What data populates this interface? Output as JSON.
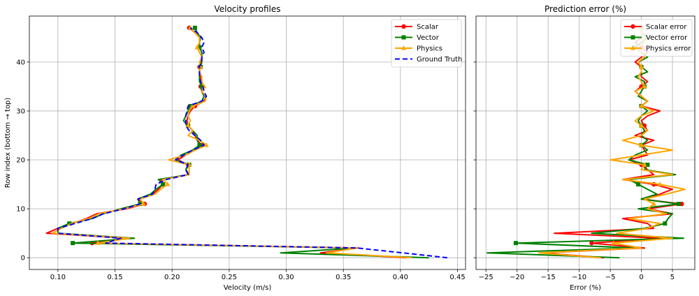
{
  "chart_data": [
    {
      "type": "line",
      "title": "Velocity profiles",
      "xlabel": "Velocity (m/s)",
      "ylabel": "Row index (bottom → top)",
      "xlim": [
        0.075,
        0.457
      ],
      "ylim": [
        -2.4,
        49.4
      ],
      "xticks": [
        0.1,
        0.15,
        0.2,
        0.25,
        0.3,
        0.35,
        0.4,
        0.45
      ],
      "xtick_labels": [
        "0.10",
        "0.15",
        "0.20",
        "0.25",
        "0.30",
        "0.35",
        "0.40",
        "0.45"
      ],
      "yticks": [
        0,
        10,
        20,
        30,
        40
      ],
      "ytick_labels": [
        "0",
        "10",
        "20",
        "30",
        "40"
      ],
      "grid": true,
      "legend_position": "top-right",
      "series": [
        {
          "name": "Scalar",
          "color": "#ff0000",
          "marker": "circle",
          "linestyle": "solid",
          "y": [
            0,
            1,
            2,
            3,
            4,
            5,
            6,
            7,
            8,
            9,
            10,
            11,
            12,
            13,
            14,
            15,
            16,
            17,
            18,
            19,
            20,
            21,
            22,
            23,
            24,
            25,
            26,
            27,
            28,
            29,
            30,
            31,
            32,
            33,
            34,
            35,
            36,
            37,
            38,
            39,
            40,
            41,
            42,
            43,
            44,
            45,
            46,
            47
          ],
          "x": [
            0.405,
            0.33,
            0.363,
            0.13,
            0.16,
            0.09,
            0.1,
            0.113,
            0.125,
            0.134,
            0.16,
            0.176,
            0.17,
            0.183,
            0.188,
            0.192,
            0.19,
            0.214,
            0.212,
            0.214,
            0.205,
            0.212,
            0.22,
            0.226,
            0.222,
            0.22,
            0.218,
            0.214,
            0.213,
            0.214,
            0.216,
            0.22,
            0.228,
            0.23,
            0.226,
            0.225,
            0.226,
            0.225,
            0.224,
            0.224,
            0.225,
            0.226,
            0.226,
            0.224,
            0.224,
            0.224,
            0.22,
            0.215
          ],
          "marker_rows": [
            3,
            11,
            15,
            19,
            23,
            27,
            31,
            35,
            39,
            43,
            47
          ]
        },
        {
          "name": "Vector",
          "color": "#008000",
          "marker": "square",
          "linestyle": "solid",
          "y": [
            0,
            1,
            2,
            3,
            4,
            5,
            6,
            7,
            8,
            9,
            10,
            11,
            12,
            13,
            14,
            15,
            16,
            17,
            18,
            19,
            20,
            21,
            22,
            23,
            24,
            25,
            26,
            27,
            28,
            29,
            30,
            31,
            32,
            33,
            34,
            35,
            36,
            37,
            38,
            39,
            40,
            41,
            42,
            43,
            44,
            45,
            46,
            47
          ],
          "x": [
            0.425,
            0.295,
            0.36,
            0.113,
            0.167,
            0.1,
            0.1,
            0.11,
            0.13,
            0.14,
            0.155,
            0.172,
            0.17,
            0.181,
            0.186,
            0.192,
            0.188,
            0.215,
            0.212,
            0.215,
            0.203,
            0.208,
            0.218,
            0.224,
            0.222,
            0.222,
            0.218,
            0.214,
            0.21,
            0.212,
            0.214,
            0.216,
            0.226,
            0.228,
            0.226,
            0.226,
            0.224,
            0.224,
            0.224,
            0.225,
            0.226,
            0.226,
            0.226,
            0.224,
            0.224,
            0.225,
            0.222,
            0.22
          ],
          "marker_rows": [
            3,
            7,
            11,
            15,
            19,
            23,
            27,
            31,
            35,
            39,
            43,
            47
          ]
        },
        {
          "name": "Physics",
          "color": "#ffa500",
          "marker": "triangle",
          "linestyle": "solid",
          "y": [
            0,
            1,
            2,
            3,
            4,
            5,
            6,
            7,
            8,
            9,
            10,
            11,
            12,
            13,
            14,
            15,
            16,
            17,
            18,
            19,
            20,
            21,
            22,
            23,
            24,
            25,
            26,
            27,
            28,
            29,
            30,
            31,
            32,
            33,
            34,
            35,
            36,
            37,
            38,
            39,
            40,
            41,
            42,
            43,
            44,
            45,
            46,
            47
          ],
          "x": [
            0.41,
            0.335,
            0.362,
            0.135,
            0.163,
            0.095,
            0.103,
            0.112,
            0.127,
            0.136,
            0.158,
            0.175,
            0.172,
            0.185,
            0.19,
            0.196,
            0.192,
            0.215,
            0.215,
            0.215,
            0.197,
            0.212,
            0.22,
            0.23,
            0.224,
            0.214,
            0.218,
            0.214,
            0.216,
            0.214,
            0.215,
            0.218,
            0.229,
            0.23,
            0.226,
            0.228,
            0.226,
            0.226,
            0.224,
            0.225,
            0.224,
            0.226,
            0.224,
            0.222,
            0.224,
            0.224,
            0.22,
            0.216
          ],
          "marker_rows": [
            3,
            11,
            15,
            19,
            23,
            27,
            31,
            35,
            39,
            43,
            47
          ]
        },
        {
          "name": "Ground Truth",
          "color": "#0000ff",
          "marker": "none",
          "linestyle": "dashed",
          "y": [
            0,
            1,
            2,
            3,
            4,
            5,
            6,
            7,
            8,
            9,
            10,
            11,
            12,
            13,
            14,
            15,
            16,
            17,
            18,
            19,
            20,
            21,
            22,
            23,
            24,
            25,
            26,
            27,
            28,
            29,
            30,
            31,
            32,
            33,
            34,
            35,
            36,
            37,
            38,
            39,
            40,
            41,
            42,
            43,
            44,
            45,
            46,
            47
          ],
          "x": [
            0.441,
            0.402,
            0.362,
            0.142,
            0.155,
            0.1,
            0.1,
            0.115,
            0.13,
            0.14,
            0.158,
            0.172,
            0.17,
            0.183,
            0.185,
            0.186,
            0.195,
            0.214,
            0.212,
            0.214,
            0.203,
            0.21,
            0.218,
            0.228,
            0.225,
            0.22,
            0.215,
            0.212,
            0.212,
            0.212,
            0.213,
            0.214,
            0.226,
            0.23,
            0.228,
            0.227,
            0.225,
            0.224,
            0.224,
            0.224,
            0.226,
            0.226,
            0.228,
            0.226,
            0.228,
            0.226,
            0.222,
            0.216
          ]
        }
      ]
    },
    {
      "type": "line",
      "title": "Prediction error (%)",
      "xlabel": "Error (%)",
      "ylabel": "",
      "xlim": [
        -26.6,
        8.6
      ],
      "ylim": [
        -2.4,
        49.4
      ],
      "xticks": [
        -25,
        -20,
        -15,
        -10,
        -5,
        0,
        5
      ],
      "xtick_labels": [
        "−25",
        "−20",
        "−15",
        "−10",
        "−5",
        "0",
        "5"
      ],
      "yticks": [
        0,
        10,
        20,
        30,
        40
      ],
      "grid": true,
      "legend_position": "top-right",
      "series": [
        {
          "name": "Scalar error",
          "color": "#ff0000",
          "marker": "circle",
          "linestyle": "solid",
          "y": [
            0,
            1,
            2,
            3,
            4,
            5,
            6,
            7,
            8,
            9,
            10,
            11,
            12,
            13,
            14,
            15,
            16,
            17,
            18,
            19,
            20,
            21,
            22,
            23,
            24,
            25,
            26,
            27,
            28,
            29,
            30,
            31,
            32,
            33,
            34,
            35,
            36,
            37,
            38,
            39,
            40,
            41,
            42,
            43,
            44,
            45,
            46,
            47
          ],
          "x": [
            -6,
            -16,
            0.5,
            -8,
            3,
            -14,
            2,
            1,
            -3,
            5,
            1,
            6.5,
            0,
            3,
            5,
            2,
            -3,
            2,
            1,
            0,
            -2,
            1,
            0.5,
            0,
            2,
            -1,
            1,
            0.5,
            0,
            1,
            3,
            0,
            1,
            0,
            -1,
            0,
            1,
            0,
            0,
            0,
            -1,
            0,
            1,
            0,
            -1,
            0,
            0,
            0
          ],
          "marker_rows": [
            3,
            11,
            15,
            19,
            23,
            27,
            31,
            35,
            39,
            43,
            47
          ]
        },
        {
          "name": "Vector error",
          "color": "#008000",
          "marker": "square",
          "linestyle": "solid",
          "y": [
            0,
            1,
            2,
            3,
            4,
            5,
            6,
            7,
            8,
            9,
            10,
            11,
            12,
            13,
            14,
            15,
            16,
            17,
            18,
            19,
            20,
            21,
            22,
            23,
            24,
            25,
            26,
            27,
            28,
            29,
            30,
            31,
            32,
            33,
            34,
            35,
            36,
            37,
            38,
            39,
            40,
            41,
            42,
            43,
            44,
            45,
            46,
            47
          ],
          "x": [
            -3.5,
            -24.8,
            -1,
            -20.2,
            6.8,
            -8,
            0.5,
            3.8,
            4.3,
            5,
            -0.5,
            6,
            0,
            2.5,
            1,
            -0.5,
            -2,
            5.5,
            0.5,
            1,
            -2,
            -1,
            1,
            0,
            1,
            0,
            0.5,
            0,
            -0.5,
            0,
            1,
            0,
            1,
            -0.5,
            0,
            0.5,
            0.5,
            -1,
            1,
            0,
            -0.5,
            1,
            0,
            -1,
            0,
            1,
            0,
            0
          ],
          "marker_rows": [
            3,
            7,
            11,
            15,
            19,
            23,
            27,
            31,
            35,
            39,
            43,
            47
          ]
        },
        {
          "name": "Physics error",
          "color": "#ffa500",
          "marker": "triangle",
          "linestyle": "solid",
          "y": [
            0,
            1,
            2,
            3,
            4,
            5,
            6,
            7,
            8,
            9,
            10,
            11,
            12,
            13,
            14,
            15,
            16,
            17,
            18,
            19,
            20,
            21,
            22,
            23,
            24,
            25,
            26,
            27,
            28,
            29,
            30,
            31,
            32,
            33,
            34,
            35,
            36,
            37,
            38,
            39,
            40,
            41,
            42,
            43,
            44,
            45,
            46,
            47
          ],
          "x": [
            -6.5,
            -16.5,
            0,
            -4.5,
            5,
            -4,
            1,
            3,
            -2,
            4,
            1,
            2,
            0.5,
            4,
            7,
            3,
            -3,
            5,
            0,
            0.5,
            -5,
            0,
            5,
            0,
            -3,
            0,
            1,
            0,
            -1,
            0,
            2,
            0,
            1,
            0,
            -1,
            0.5,
            0,
            -0.5,
            0,
            0,
            -0.5,
            0.5,
            0,
            -0.5,
            0.5,
            0,
            0,
            0
          ],
          "marker_rows": [
            3,
            11,
            15,
            19,
            23,
            27,
            31,
            35,
            39,
            43,
            47
          ]
        }
      ]
    }
  ]
}
